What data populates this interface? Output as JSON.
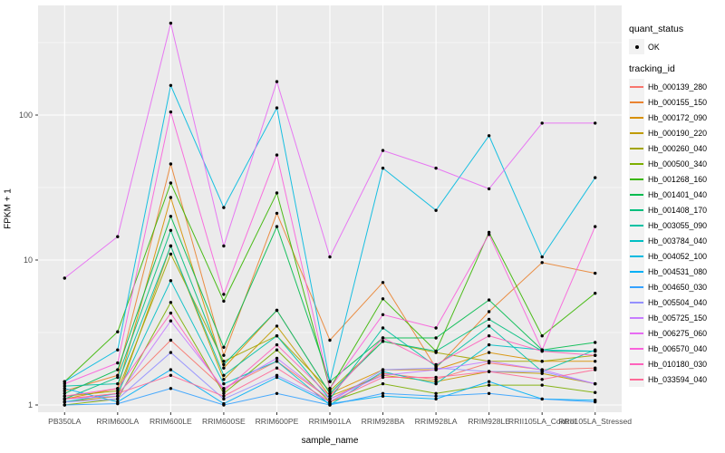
{
  "chart_data": {
    "type": "line",
    "title": "",
    "xlabel": "sample_name",
    "ylabel": "FPKM + 1",
    "y_scale": "log10",
    "y_ticks": [
      1,
      10,
      100
    ],
    "y_minor_ticks": [
      3.162,
      31.623,
      316.23
    ],
    "ylim": [
      0.89,
      570
    ],
    "grid": "major-white-on-grey",
    "panel_bg": "#EBEBEB",
    "gridline_color": "#FFFFFF",
    "tick_label_color": "#4D4D4D",
    "point_color": "#000000",
    "categories": [
      "PB350LA",
      "RRIM600LA",
      "RRIM600LE",
      "RRIM600SE",
      "RRIM600PE",
      "RRIM901LA",
      "RRIM928BA",
      "RRIM928LA",
      "RRIM928LE",
      "RRII105LA_Control",
      "RRII105LA_Stressed"
    ],
    "legend": {
      "quant_status_title": "quant_status",
      "quant_status_items": [
        {
          "label": "OK"
        }
      ],
      "tracking_id_title": "tracking_id",
      "position": "right"
    },
    "series": [
      {
        "name": "Hb_000139_280",
        "color": "#F8766D",
        "values": [
          1.1,
          1.2,
          2.8,
          1.3,
          2.0,
          1.1,
          1.65,
          1.5,
          1.95,
          1.75,
          1.8
        ]
      },
      {
        "name": "Hb_000155_150",
        "color": "#EA8331",
        "values": [
          1.25,
          1.6,
          46,
          2.2,
          21,
          2.8,
          7.0,
          1.8,
          4.4,
          9.6,
          8.1
        ]
      },
      {
        "name": "Hb_000172_090",
        "color": "#D89000",
        "values": [
          1.1,
          1.3,
          27,
          1.8,
          4.5,
          1.2,
          1.75,
          1.75,
          2.3,
          2.0,
          2.0
        ]
      },
      {
        "name": "Hb_000190_220",
        "color": "#C09B00",
        "values": [
          1.05,
          1.15,
          12.5,
          1.5,
          3.5,
          1.15,
          1.6,
          1.45,
          1.7,
          1.65,
          1.4
        ]
      },
      {
        "name": "Hb_000260_040",
        "color": "#A3A500",
        "values": [
          1.15,
          1.25,
          11,
          2.0,
          3.0,
          1.25,
          2.75,
          2.3,
          2.0,
          2.0,
          2.2
        ]
      },
      {
        "name": "Hb_000500_340",
        "color": "#7CAE00",
        "values": [
          1.0,
          1.1,
          5.1,
          1.2,
          2.4,
          1.05,
          1.4,
          1.2,
          1.37,
          1.37,
          1.22
        ]
      },
      {
        "name": "Hb_001268_160",
        "color": "#39B600",
        "values": [
          1.45,
          3.2,
          34,
          5.2,
          29,
          1.3,
          5.4,
          2.35,
          15.5,
          3.0,
          5.9
        ]
      },
      {
        "name": "Hb_001401_040",
        "color": "#00BB4E",
        "values": [
          1.2,
          1.75,
          20,
          2.5,
          17,
          1.45,
          2.9,
          2.9,
          5.3,
          2.4,
          2.7
        ]
      },
      {
        "name": "Hb_001408_170",
        "color": "#00BF7D",
        "values": [
          1.1,
          1.55,
          16,
          1.9,
          4.5,
          1.2,
          2.75,
          2.35,
          3.9,
          2.35,
          2.35
        ]
      },
      {
        "name": "Hb_003055_090",
        "color": "#00C1A3",
        "values": [
          1.35,
          1.4,
          12.5,
          1.6,
          3.0,
          1.1,
          3.4,
          1.85,
          3.5,
          1.7,
          2.4
        ]
      },
      {
        "name": "Hb_003784_040",
        "color": "#00BFC4",
        "values": [
          1.05,
          1.2,
          7.2,
          1.4,
          2.0,
          1.0,
          1.7,
          1.4,
          2.6,
          2.4,
          2.35
        ]
      },
      {
        "name": "Hb_004052_100",
        "color": "#00BAE0",
        "values": [
          1.45,
          2.4,
          160,
          23,
          112,
          1.45,
          43,
          22,
          72,
          10.5,
          37
        ]
      },
      {
        "name": "Hb_004531_080",
        "color": "#00B0F6",
        "values": [
          1.3,
          1.05,
          1.75,
          1.02,
          1.55,
          1.02,
          1.15,
          1.1,
          1.45,
          1.1,
          1.08
        ]
      },
      {
        "name": "Hb_004650_030",
        "color": "#35A2FF",
        "values": [
          1.0,
          1.02,
          1.3,
          1.0,
          1.2,
          1.0,
          1.2,
          1.15,
          1.2,
          1.1,
          1.05
        ]
      },
      {
        "name": "Hb_005504_040",
        "color": "#9590FF",
        "values": [
          1.05,
          1.1,
          2.3,
          1.1,
          1.6,
          1.05,
          1.75,
          1.8,
          1.7,
          1.7,
          1.4
        ]
      },
      {
        "name": "Hb_005725_150",
        "color": "#C77CFF",
        "values": [
          1.1,
          1.15,
          3.8,
          1.3,
          2.1,
          1.1,
          1.6,
          1.75,
          2.0,
          1.75,
          1.4
        ]
      },
      {
        "name": "Hb_006275_060",
        "color": "#E76BF3",
        "values": [
          7.5,
          14.5,
          430,
          12.5,
          170,
          10.5,
          57,
          43,
          31,
          88,
          88
        ]
      },
      {
        "name": "Hb_006570_040",
        "color": "#FA62DB",
        "values": [
          1.4,
          1.95,
          105,
          5.8,
          53,
          1.3,
          4.2,
          3.4,
          15.0,
          2.4,
          17
        ]
      },
      {
        "name": "Hb_010180_030",
        "color": "#FF62BC",
        "values": [
          1.15,
          1.3,
          4.3,
          1.25,
          2.6,
          1.15,
          2.9,
          1.9,
          3.0,
          2.35,
          2.2
        ]
      },
      {
        "name": "Hb_033594_040",
        "color": "#FF6A98",
        "values": [
          1.1,
          1.2,
          1.6,
          1.15,
          1.8,
          1.05,
          1.55,
          1.55,
          1.7,
          1.5,
          1.75
        ]
      }
    ]
  }
}
